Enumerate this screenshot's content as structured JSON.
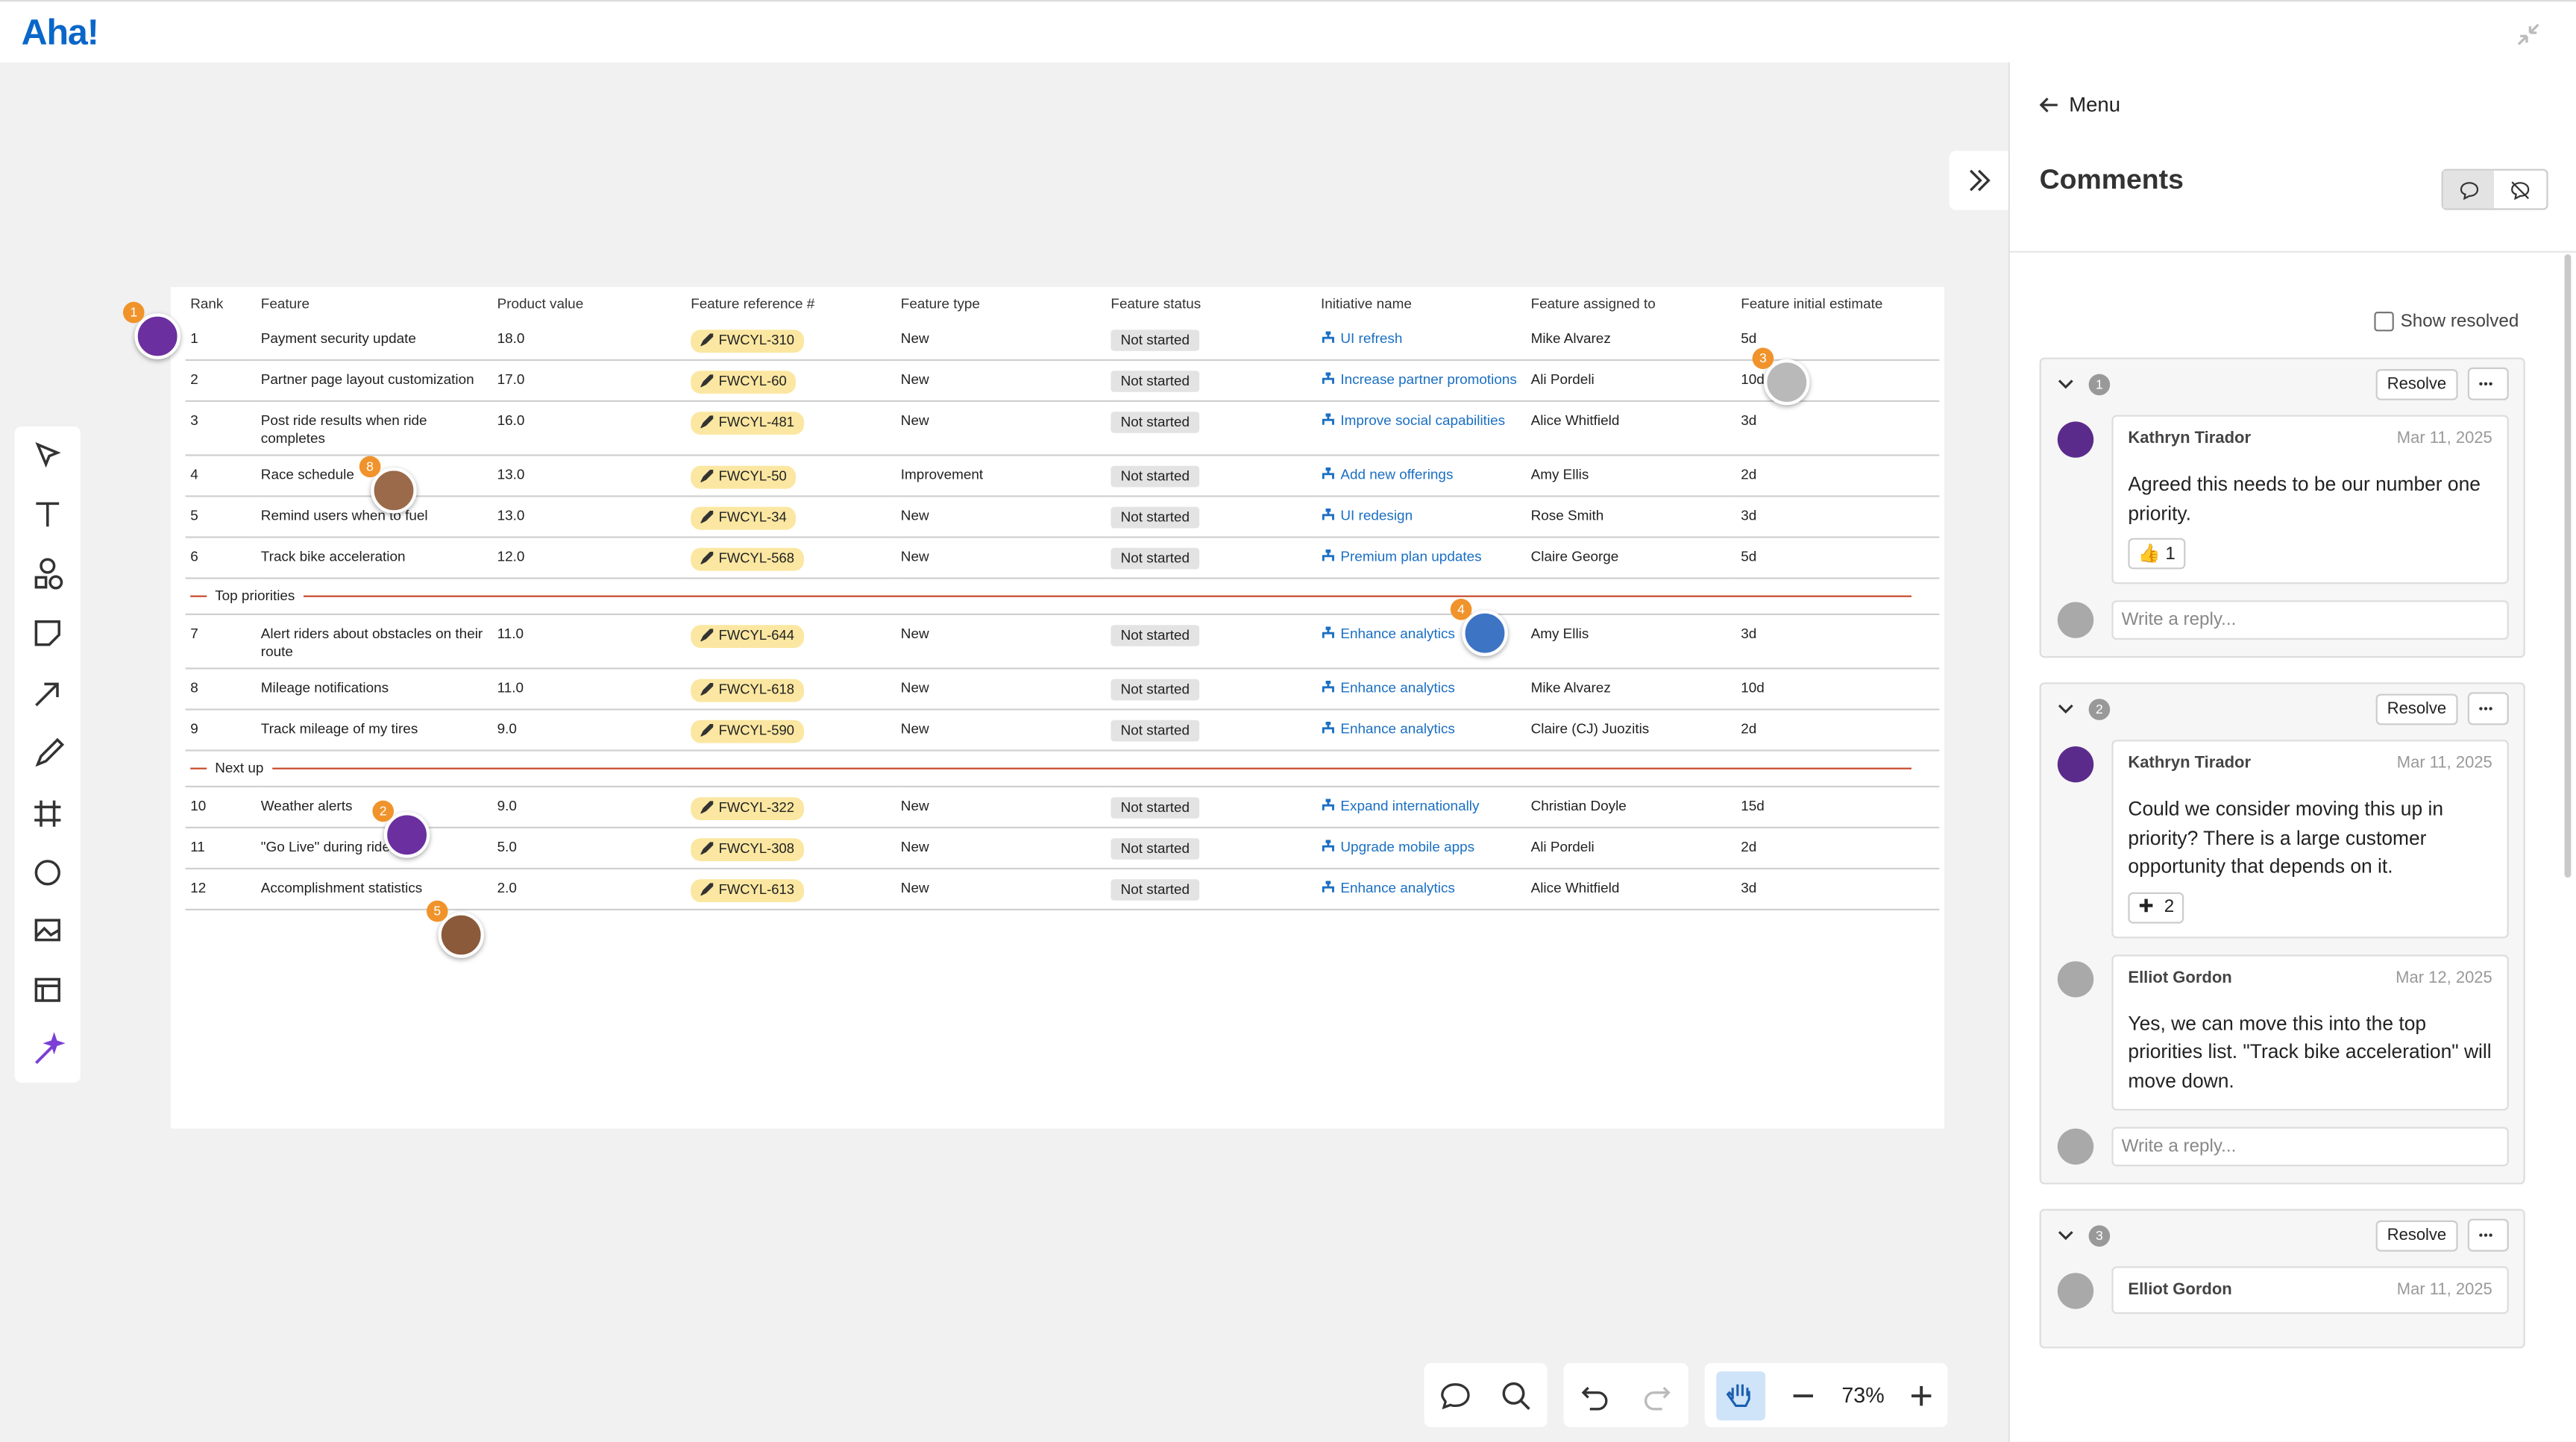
{
  "header": {
    "logo": "Aha!"
  },
  "table": {
    "columns": [
      "Rank",
      "Feature",
      "Product value",
      "Feature reference #",
      "Feature type",
      "Feature status",
      "Initiative name",
      "Feature assigned to",
      "Feature initial estimate"
    ],
    "rows": [
      [
        "1",
        "Payment security update",
        "18.0",
        "FWCYL-310",
        "New",
        "Not started",
        "UI refresh",
        "Mike Alvarez",
        "5d"
      ],
      [
        "2",
        "Partner page layout customization",
        "17.0",
        "FWCYL-60",
        "New",
        "Not started",
        "Increase partner promotions",
        "Ali Pordeli",
        "10d"
      ],
      [
        "3",
        "Post ride results when ride completes",
        "16.0",
        "FWCYL-481",
        "New",
        "Not started",
        "Improve social capabilities",
        "Alice Whitfield",
        "3d"
      ],
      [
        "4",
        "Race schedule",
        "13.0",
        "FWCYL-50",
        "Improvement",
        "Not started",
        "Add new offerings",
        "Amy Ellis",
        "2d"
      ],
      [
        "5",
        "Remind users when to fuel",
        "13.0",
        "FWCYL-34",
        "New",
        "Not started",
        "UI redesign",
        "Rose Smith",
        "3d"
      ],
      [
        "6",
        "Track bike acceleration",
        "12.0",
        "FWCYL-568",
        "New",
        "Not started",
        "Premium plan updates",
        "Claire George",
        "5d"
      ],
      {
        "divider": "Top priorities"
      },
      [
        "7",
        "Alert riders about obstacles on their route",
        "11.0",
        "FWCYL-644",
        "New",
        "Not started",
        "Enhance analytics",
        "Amy Ellis",
        "3d"
      ],
      [
        "8",
        "Mileage notifications",
        "11.0",
        "FWCYL-618",
        "New",
        "Not started",
        "Enhance analytics",
        "Mike Alvarez",
        "10d"
      ],
      [
        "9",
        "Track mileage of my tires",
        "9.0",
        "FWCYL-590",
        "New",
        "Not started",
        "Enhance analytics",
        "Claire (CJ) Juozitis",
        "2d"
      ],
      {
        "divider": "Next up"
      },
      [
        "10",
        "Weather alerts",
        "9.0",
        "FWCYL-322",
        "New",
        "Not started",
        "Expand internationally",
        "Christian Doyle",
        "15d"
      ],
      [
        "11",
        "\"Go Live\" during ride",
        "5.0",
        "FWCYL-308",
        "New",
        "Not started",
        "Upgrade mobile apps",
        "Ali Pordeli",
        "2d"
      ],
      [
        "12",
        "Accomplishment statistics",
        "2.0",
        "FWCYL-613",
        "New",
        "Not started",
        "Enhance analytics",
        "Alice Whitfield",
        "3d"
      ]
    ]
  },
  "canvas": {
    "pins": [
      "1",
      "3",
      "8",
      "4",
      "2",
      "5"
    ]
  },
  "toolbar": {
    "zoom": "73%"
  },
  "sidebar": {
    "menu": "Menu",
    "title": "Comments",
    "show_resolved": "Show resolved",
    "resolve_label": "Resolve",
    "reply_placeholder": "Write a reply...",
    "threads": [
      {
        "number": "1",
        "comments": [
          {
            "author": "Kathryn Tirador",
            "date": "Mar 11, 2025",
            "text": "Agreed this needs to be our number one priority.",
            "reaction": {
              "emoji": "👍",
              "count": "1"
            }
          }
        ]
      },
      {
        "number": "2",
        "comments": [
          {
            "author": "Kathryn Tirador",
            "date": "Mar 11, 2025",
            "text": "Could we consider moving this up in priority? There is a large customer opportunity that depends on it.",
            "reaction": {
              "count": "2"
            }
          },
          {
            "author": "Elliot Gordon",
            "date": "Mar 12, 2025",
            "text": "Yes, we can move this into the top priorities list. \"Track bike acceleration\" will move down."
          }
        ]
      },
      {
        "number": "3",
        "comments": [
          {
            "author": "Elliot Gordon",
            "date": "Mar 11, 2025"
          }
        ]
      }
    ]
  }
}
